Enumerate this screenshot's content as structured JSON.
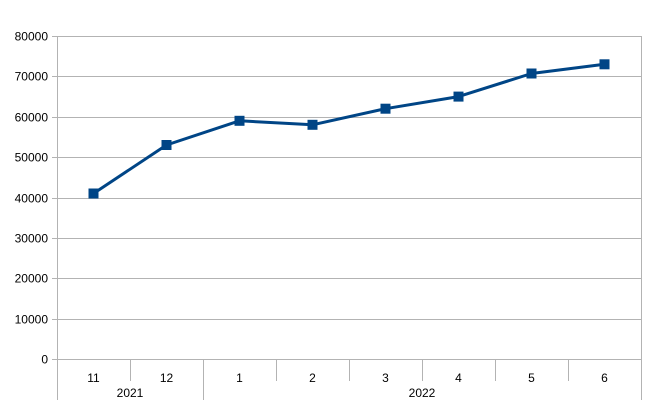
{
  "chart_data": {
    "type": "line",
    "title": "",
    "xlabel": "",
    "ylabel": "",
    "ylim": [
      0,
      80000
    ],
    "y_ticks": [
      "0",
      "10000",
      "20000",
      "30000",
      "40000",
      "50000",
      "60000",
      "70000",
      "80000"
    ],
    "categories": [
      "11",
      "12",
      "1",
      "2",
      "3",
      "4",
      "5",
      "6"
    ],
    "groups": [
      {
        "label": "2021",
        "count": 2
      },
      {
        "label": "2022",
        "count": 6
      }
    ],
    "series": [
      {
        "values": [
          41000,
          53000,
          59000,
          58000,
          62000,
          65000,
          70700,
          73000
        ],
        "color": "#004586",
        "marker": "square"
      }
    ],
    "grid": true,
    "legend": "none"
  }
}
